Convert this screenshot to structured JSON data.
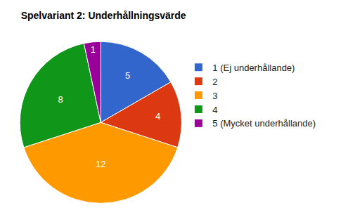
{
  "chart_data": {
    "type": "pie",
    "title": "Spelvariant 2: Underhållningsvärde",
    "categories": [
      "1 (Ej underhållande)",
      "2",
      "3",
      "4",
      "5 (Mycket underhållande)"
    ],
    "values": [
      5,
      4,
      12,
      8,
      1
    ],
    "colors": [
      "#3366cc",
      "#dc3912",
      "#ff9900",
      "#109618",
      "#990099"
    ],
    "data_labels": true,
    "legend": "right"
  }
}
